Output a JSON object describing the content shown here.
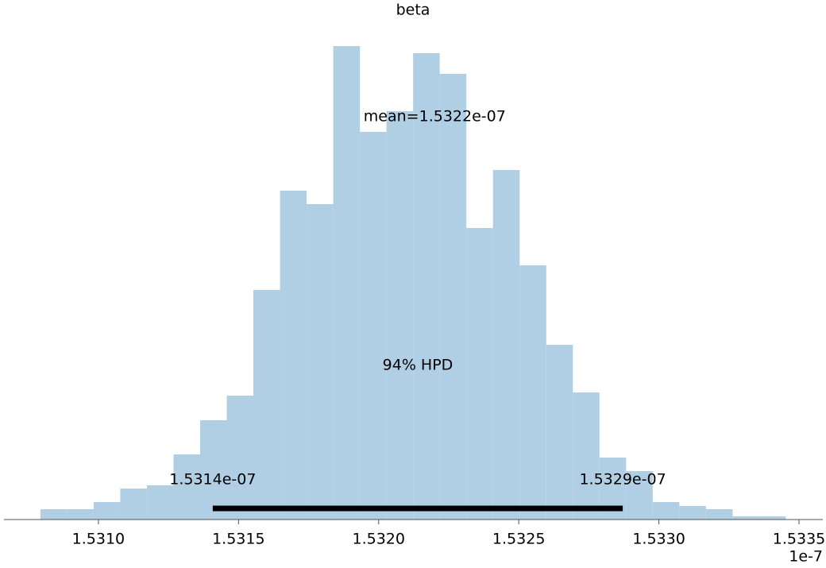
{
  "chart_data": {
    "type": "histogram",
    "title": "beta",
    "bins": [
      1.530793,
      1.530888,
      1.530983,
      1.531078,
      1.531173,
      1.531268,
      1.531363,
      1.531458,
      1.531553,
      1.531648,
      1.531743,
      1.531838,
      1.531933,
      1.532028,
      1.532123,
      1.532218,
      1.532313,
      1.532408,
      1.532503,
      1.532598,
      1.532693,
      1.532788,
      1.532883,
      1.532978,
      1.533073,
      1.533168,
      1.533263,
      1.533358,
      1.533453
    ],
    "values": [
      13,
      13,
      22,
      39,
      43,
      82,
      125,
      156,
      289,
      414,
      397,
      596,
      488,
      514,
      587,
      561,
      367,
      440,
      320,
      220,
      160,
      78,
      61,
      22,
      17,
      13,
      4,
      4
    ],
    "color": "#b0cfe4",
    "xlim": [
      1.530663,
      1.533585
    ],
    "ylim": [
      0,
      614
    ],
    "xticks": [
      {
        "value": 1.531,
        "label": "1.5310"
      },
      {
        "value": 1.5315,
        "label": "1.5315"
      },
      {
        "value": 1.532,
        "label": "1.5320"
      },
      {
        "value": 1.5325,
        "label": "1.5325"
      },
      {
        "value": 1.533,
        "label": "1.5330"
      },
      {
        "value": 1.5335,
        "label": "1.5335"
      }
    ],
    "x_offset_label": "1e-7",
    "mean": {
      "value": 1.5322,
      "label": "mean=1.5322e-07"
    },
    "hpd_label": "94% HPD",
    "hpd": [
      {
        "value": 1.531408,
        "label": "1.5314e-07"
      },
      {
        "value": 1.532871,
        "label": "1.5329e-07"
      }
    ]
  }
}
